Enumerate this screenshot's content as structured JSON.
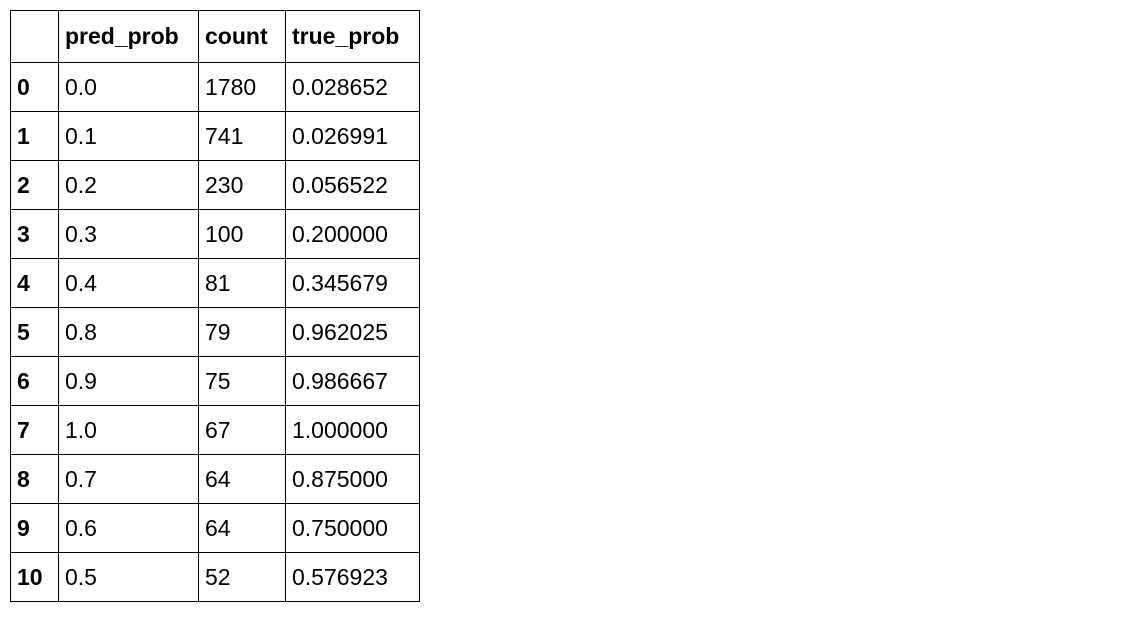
{
  "table": {
    "columns": [
      "",
      "pred_prob",
      "count",
      "true_prob"
    ],
    "rows": [
      {
        "index": "0",
        "pred_prob": "0.0",
        "count": "1780",
        "true_prob": "0.028652"
      },
      {
        "index": "1",
        "pred_prob": "0.1",
        "count": "741",
        "true_prob": "0.026991"
      },
      {
        "index": "2",
        "pred_prob": "0.2",
        "count": "230",
        "true_prob": "0.056522"
      },
      {
        "index": "3",
        "pred_prob": "0.3",
        "count": "100",
        "true_prob": "0.200000"
      },
      {
        "index": "4",
        "pred_prob": "0.4",
        "count": "81",
        "true_prob": "0.345679"
      },
      {
        "index": "5",
        "pred_prob": "0.8",
        "count": "79",
        "true_prob": "0.962025"
      },
      {
        "index": "6",
        "pred_prob": "0.9",
        "count": "75",
        "true_prob": "0.986667"
      },
      {
        "index": "7",
        "pred_prob": "1.0",
        "count": "67",
        "true_prob": "1.000000"
      },
      {
        "index": "8",
        "pred_prob": "0.7",
        "count": "64",
        "true_prob": "0.875000"
      },
      {
        "index": "9",
        "pred_prob": "0.6",
        "count": "64",
        "true_prob": "0.750000"
      },
      {
        "index": "10",
        "pred_prob": "0.5",
        "count": "52",
        "true_prob": "0.576923"
      }
    ]
  }
}
